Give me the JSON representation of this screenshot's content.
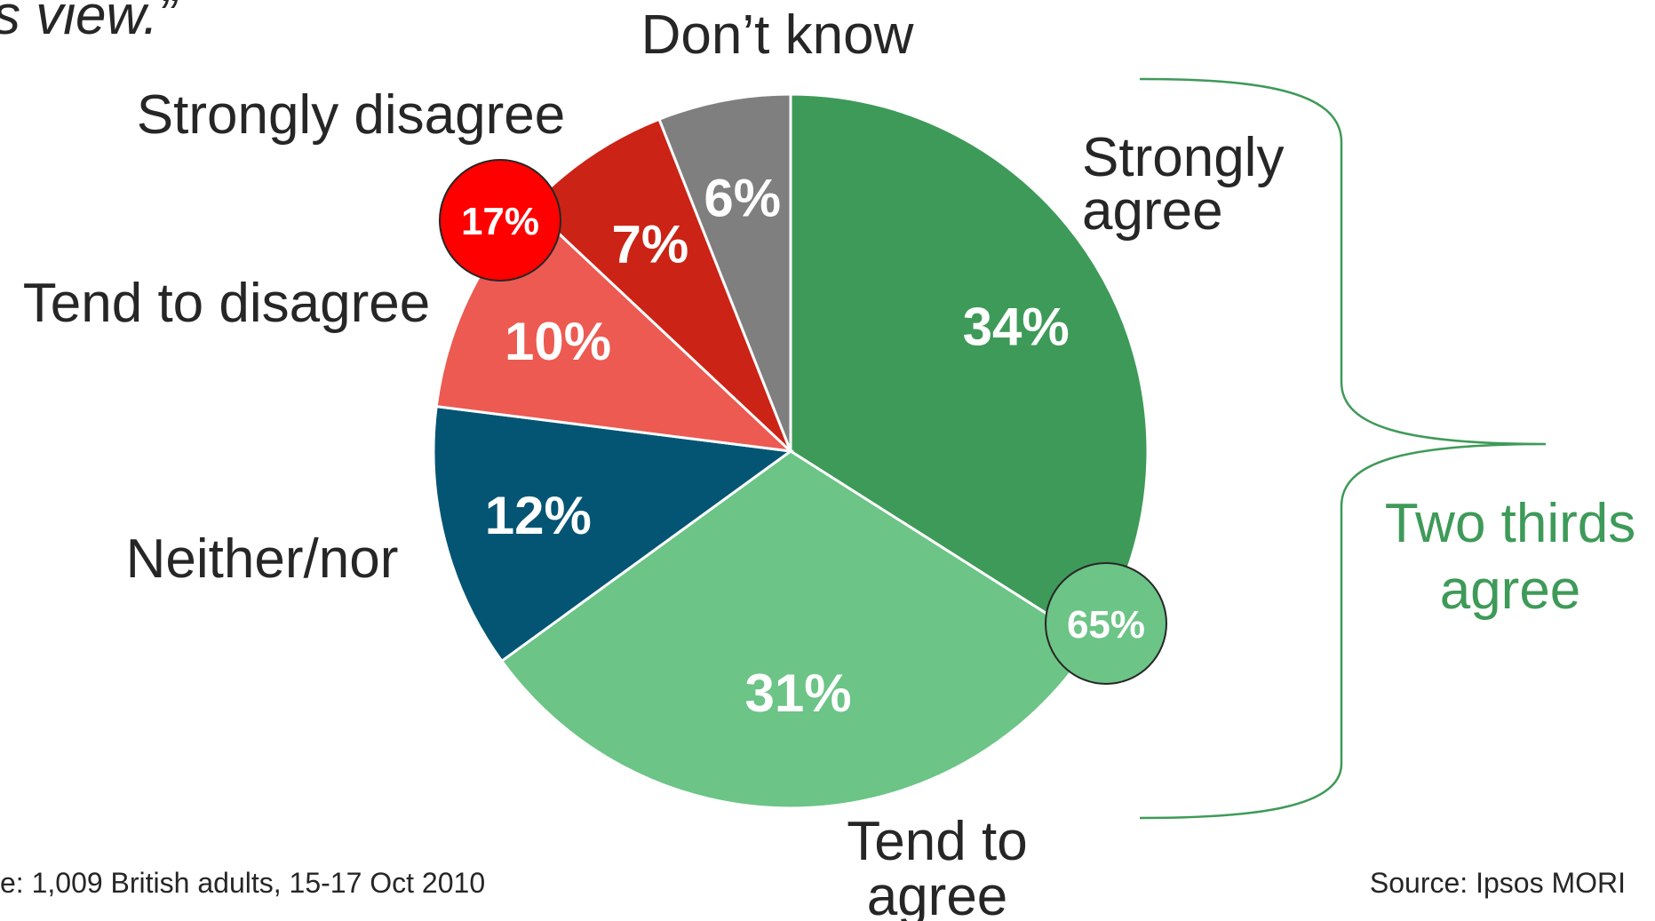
{
  "header_fragment": "s view.”",
  "chart_data": {
    "type": "pie",
    "start_angle_deg": 0,
    "direction": "clockwise",
    "slices": [
      {
        "label_lines": [
          "Strongly",
          "agree"
        ],
        "value": 34,
        "value_label": "34%",
        "color": "#3e9a58"
      },
      {
        "label_lines": [
          "Tend to",
          "agree"
        ],
        "value": 31,
        "value_label": "31%",
        "color": "#6cc486"
      },
      {
        "label_lines": [
          "Neither/nor"
        ],
        "value": 12,
        "value_label": "12%",
        "color": "#035573"
      },
      {
        "label_lines": [
          "Tend to disagree"
        ],
        "value": 10,
        "value_label": "10%",
        "color": "#ec5a52"
      },
      {
        "label_lines": [
          "Strongly disagree"
        ],
        "value": 7,
        "value_label": "7%",
        "color": "#cb2316"
      },
      {
        "label_lines": [
          "Don’t know"
        ],
        "value": 6,
        "value_label": "6%",
        "color": "#7f7f7f"
      }
    ],
    "badges": [
      {
        "name": "total-agree",
        "text": "65%",
        "color": "#6cc486"
      },
      {
        "name": "total-disagree",
        "text": "17%",
        "color": "#ff0000"
      }
    ],
    "brace_annotation": {
      "lines": [
        "Two thirds",
        "agree"
      ],
      "color": "#3e9a58"
    }
  },
  "footer": {
    "base_note": "e: 1,009 British adults, 15-17 Oct 2010",
    "source": "Source: Ipsos MORI"
  }
}
